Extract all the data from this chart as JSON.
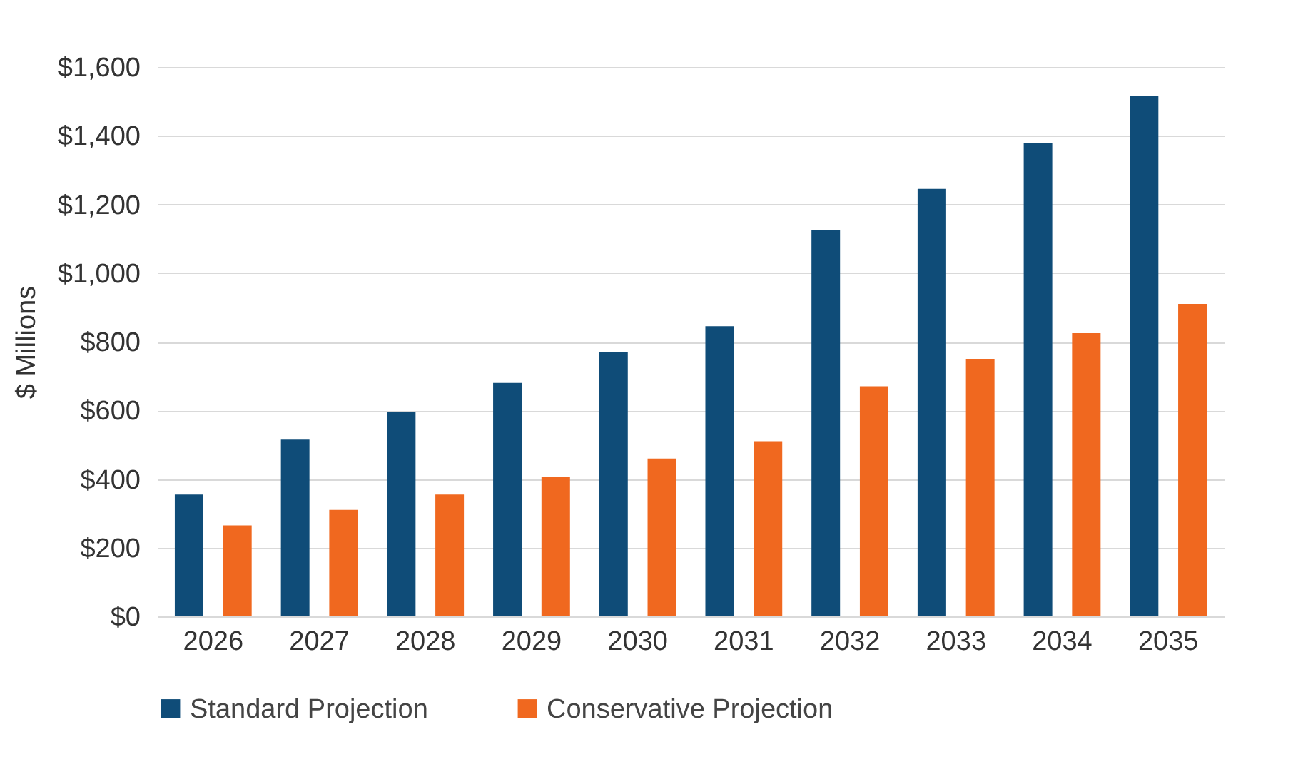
{
  "chart_data": {
    "type": "bar",
    "ylabel": "$ Millions",
    "categories": [
      "2026",
      "2027",
      "2028",
      "2029",
      "2030",
      "2031",
      "2032",
      "2033",
      "2034",
      "2035"
    ],
    "series": [
      {
        "name": "Standard Projection",
        "color": "#0f4c78",
        "values": [
          355,
          515,
          595,
          680,
          770,
          845,
          1125,
          1245,
          1380,
          1515
        ]
      },
      {
        "name": "Conservative Projection",
        "color": "#f0681f",
        "values": [
          265,
          310,
          355,
          405,
          460,
          510,
          670,
          750,
          825,
          910
        ]
      }
    ],
    "ylim": [
      0,
      1600
    ],
    "yticks": [
      {
        "value": 0,
        "label": "$0"
      },
      {
        "value": 200,
        "label": "$200"
      },
      {
        "value": 400,
        "label": "$400"
      },
      {
        "value": 600,
        "label": "$600"
      },
      {
        "value": 800,
        "label": "$800"
      },
      {
        "value": 1000,
        "label": "$1,000"
      },
      {
        "value": 1200,
        "label": "$1,200"
      },
      {
        "value": 1400,
        "label": "$1,400"
      },
      {
        "value": 1600,
        "label": "$1,600"
      }
    ],
    "grid": "y",
    "legend": "bottom"
  }
}
